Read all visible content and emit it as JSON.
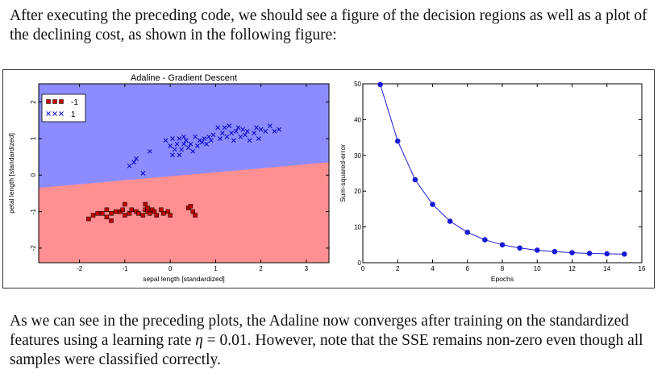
{
  "intro_text": "After executing the preceding code, we should see a figure of the decision regions as well as a plot of the declining cost, as shown in the following figure:",
  "outro": {
    "part1": "As we can see in the preceding plots, the Adaline now converges after training on the standardized features using a learning rate ",
    "eta_symbol": "η",
    "eta_value": " = 0.01",
    "part2": ". However, note that the SSE remains non-zero even though all samples were classified correctly."
  },
  "colors": {
    "region_neg": "#ff8f91",
    "region_pos": "#8c8cff",
    "marker_neg": "#c00000",
    "marker_pos": "#0000cc",
    "line": "#1a1ad6"
  },
  "chart_data": [
    {
      "type": "scatter",
      "title": "Adaline - Gradient Descent",
      "xlabel": "sepal length [standardized]",
      "ylabel": "petal length [standardized]",
      "xlim": [
        -2.9,
        3.5
      ],
      "ylim": [
        -2.4,
        2.5
      ],
      "xticks": [
        "-2",
        "-1",
        "0",
        "1",
        "2",
        "3"
      ],
      "yticks": [
        "-2",
        "-1",
        "0",
        "1",
        "2"
      ],
      "legend": {
        "position": "upper-left",
        "entries": [
          "-1",
          "1"
        ]
      },
      "decision_boundary": {
        "at_x_min": -0.35,
        "at_x_max": 0.35
      },
      "series": [
        {
          "name": "-1",
          "marker": "square",
          "points": [
            [
              -1.8,
              -1.2
            ],
            [
              -1.7,
              -1.1
            ],
            [
              -1.6,
              -1.05
            ],
            [
              -1.5,
              -1.05
            ],
            [
              -1.4,
              -1.15
            ],
            [
              -1.4,
              -0.95
            ],
            [
              -1.3,
              -1.05
            ],
            [
              -1.3,
              -1.25
            ],
            [
              -1.2,
              -1.0
            ],
            [
              -1.1,
              -1.0
            ],
            [
              -1.05,
              -0.95
            ],
            [
              -1.0,
              -0.8
            ],
            [
              -1.0,
              -1.1
            ],
            [
              -0.9,
              -1.05
            ],
            [
              -0.85,
              -0.95
            ],
            [
              -0.75,
              -1.0
            ],
            [
              -0.7,
              -1.05
            ],
            [
              -0.6,
              -1.1
            ],
            [
              -0.55,
              -0.95
            ],
            [
              -0.5,
              -1.0
            ],
            [
              -0.55,
              -0.8
            ],
            [
              -0.5,
              -0.9
            ],
            [
              -0.45,
              -1.05
            ],
            [
              -0.4,
              -0.95
            ],
            [
              -0.35,
              -1.0
            ],
            [
              -0.3,
              -1.1
            ],
            [
              -0.2,
              -0.95
            ],
            [
              -0.15,
              -1.05
            ],
            [
              -0.05,
              -1.0
            ],
            [
              0.0,
              -1.1
            ],
            [
              0.4,
              -0.9
            ],
            [
              0.45,
              -0.85
            ],
            [
              0.5,
              -1.0
            ],
            [
              0.55,
              -1.1
            ]
          ]
        },
        {
          "name": "1",
          "marker": "x",
          "points": [
            [
              -0.9,
              0.25
            ],
            [
              -0.8,
              0.35
            ],
            [
              -0.75,
              0.45
            ],
            [
              -0.6,
              0.05
            ],
            [
              -0.45,
              0.65
            ],
            [
              -0.1,
              0.95
            ],
            [
              0.0,
              0.8
            ],
            [
              0.05,
              1.0
            ],
            [
              0.05,
              0.55
            ],
            [
              0.1,
              0.7
            ],
            [
              0.15,
              0.85
            ],
            [
              0.2,
              0.55
            ],
            [
              0.2,
              1.0
            ],
            [
              0.25,
              0.7
            ],
            [
              0.3,
              0.85
            ],
            [
              0.3,
              1.05
            ],
            [
              0.35,
              0.95
            ],
            [
              0.4,
              0.75
            ],
            [
              0.45,
              0.85
            ],
            [
              0.5,
              0.65
            ],
            [
              0.55,
              1.05
            ],
            [
              0.6,
              0.8
            ],
            [
              0.65,
              0.95
            ],
            [
              0.7,
              0.9
            ],
            [
              0.75,
              1.0
            ],
            [
              0.8,
              0.85
            ],
            [
              0.85,
              1.05
            ],
            [
              0.9,
              0.95
            ],
            [
              0.95,
              1.1
            ],
            [
              1.05,
              1.3
            ],
            [
              1.1,
              1.0
            ],
            [
              1.15,
              1.15
            ],
            [
              1.2,
              1.3
            ],
            [
              1.25,
              1.05
            ],
            [
              1.3,
              1.35
            ],
            [
              1.35,
              1.15
            ],
            [
              1.4,
              0.95
            ],
            [
              1.45,
              1.2
            ],
            [
              1.5,
              1.3
            ],
            [
              1.55,
              1.05
            ],
            [
              1.6,
              1.25
            ],
            [
              1.65,
              1.1
            ],
            [
              1.7,
              1.2
            ],
            [
              1.75,
              0.95
            ],
            [
              1.85,
              1.15
            ],
            [
              1.9,
              1.3
            ],
            [
              1.95,
              1.0
            ],
            [
              2.0,
              1.25
            ],
            [
              2.1,
              1.2
            ],
            [
              2.2,
              1.35
            ],
            [
              2.3,
              1.2
            ],
            [
              2.4,
              1.25
            ]
          ]
        }
      ]
    },
    {
      "type": "line",
      "title": "",
      "xlabel": "Epochs",
      "ylabel": "Sum-squared-error",
      "xlim": [
        0,
        16
      ],
      "ylim": [
        0,
        50
      ],
      "xticks": [
        "0",
        "2",
        "4",
        "6",
        "8",
        "10",
        "12",
        "14",
        "16"
      ],
      "yticks": [
        "0",
        "10",
        "20",
        "30",
        "40",
        "50"
      ],
      "x": [
        1,
        2,
        3,
        4,
        5,
        6,
        7,
        8,
        9,
        10,
        11,
        12,
        13,
        14,
        15
      ],
      "y": [
        49.8,
        34.0,
        23.2,
        16.3,
        11.6,
        8.5,
        6.4,
        5.0,
        4.1,
        3.5,
        3.1,
        2.8,
        2.6,
        2.5,
        2.4
      ]
    }
  ]
}
